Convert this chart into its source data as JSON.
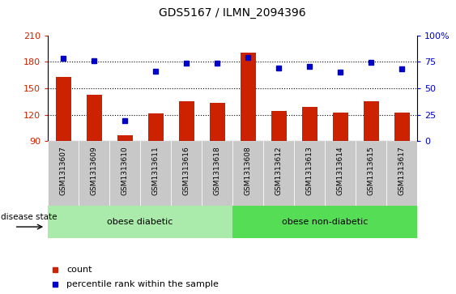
{
  "title": "GDS5167 / ILMN_2094396",
  "categories": [
    "GSM1313607",
    "GSM1313609",
    "GSM1313610",
    "GSM1313611",
    "GSM1313616",
    "GSM1313618",
    "GSM1313608",
    "GSM1313612",
    "GSM1313613",
    "GSM1313614",
    "GSM1313615",
    "GSM1313617"
  ],
  "bar_values": [
    163,
    143,
    97,
    121,
    135,
    133,
    190,
    124,
    129,
    122,
    135,
    122
  ],
  "bar_bottom": 90,
  "blue_dots_left": [
    184,
    181,
    113,
    169,
    178,
    178,
    185,
    173,
    175,
    168,
    179,
    172
  ],
  "ylim_left": [
    90,
    210
  ],
  "ylim_right": [
    0,
    100
  ],
  "yticks_left": [
    90,
    120,
    150,
    180,
    210
  ],
  "yticks_right": [
    0,
    25,
    50,
    75,
    100
  ],
  "bar_color": "#cc2200",
  "dot_color": "#0000cc",
  "group1_label": "obese diabetic",
  "group2_label": "obese non-diabetic",
  "group1_count": 6,
  "group2_count": 6,
  "group1_color": "#aaeaaa",
  "group2_color": "#55dd55",
  "bg_color": "#c8c8c8",
  "legend_count_label": "count",
  "legend_pct_label": "percentile rank within the sample",
  "disease_state_label": "disease state",
  "grid_lines": [
    120,
    150,
    180
  ],
  "right_ylabel": "%"
}
